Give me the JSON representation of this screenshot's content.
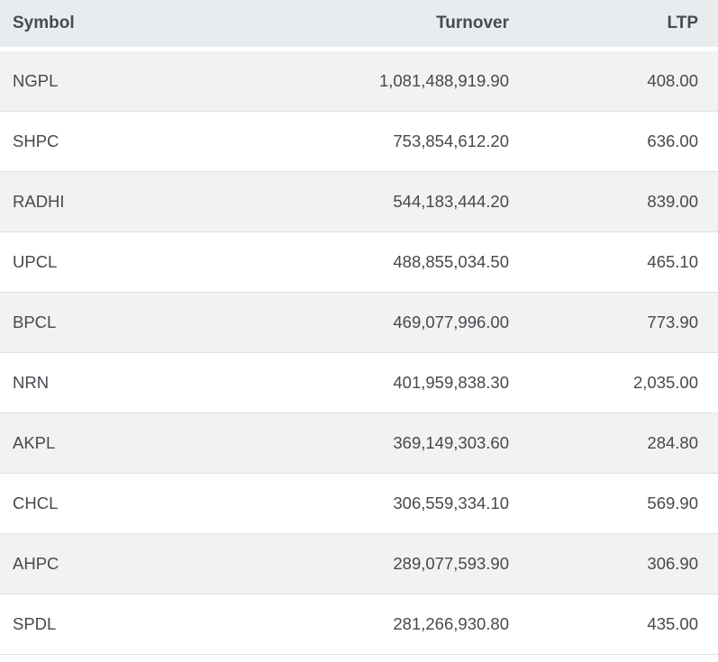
{
  "table": {
    "columns": [
      {
        "key": "symbol",
        "label": "Symbol",
        "align": "left"
      },
      {
        "key": "turnover",
        "label": "Turnover",
        "align": "right"
      },
      {
        "key": "ltp",
        "label": "LTP",
        "align": "right"
      }
    ],
    "rows": [
      {
        "symbol": "NGPL",
        "turnover": "1,081,488,919.90",
        "ltp": "408.00"
      },
      {
        "symbol": "SHPC",
        "turnover": "753,854,612.20",
        "ltp": "636.00"
      },
      {
        "symbol": "RADHI",
        "turnover": "544,183,444.20",
        "ltp": "839.00"
      },
      {
        "symbol": "UPCL",
        "turnover": "488,855,034.50",
        "ltp": "465.10"
      },
      {
        "symbol": "BPCL",
        "turnover": "469,077,996.00",
        "ltp": "773.90"
      },
      {
        "symbol": "NRN",
        "turnover": "401,959,838.30",
        "ltp": "2,035.00"
      },
      {
        "symbol": "AKPL",
        "turnover": "369,149,303.60",
        "ltp": "284.80"
      },
      {
        "symbol": "CHCL",
        "turnover": "306,559,334.10",
        "ltp": "569.90"
      },
      {
        "symbol": "AHPC",
        "turnover": "289,077,593.90",
        "ltp": "306.90"
      },
      {
        "symbol": "SPDL",
        "turnover": "281,266,930.80",
        "ltp": "435.00"
      }
    ],
    "colors": {
      "header_bg": "#e8ecee",
      "header_text": "#424d54",
      "cell_text": "#45494e",
      "row_stripe_bg": "#f2f2f2",
      "row_bg": "#ffffff",
      "row_border": "#e0e0e0"
    }
  }
}
